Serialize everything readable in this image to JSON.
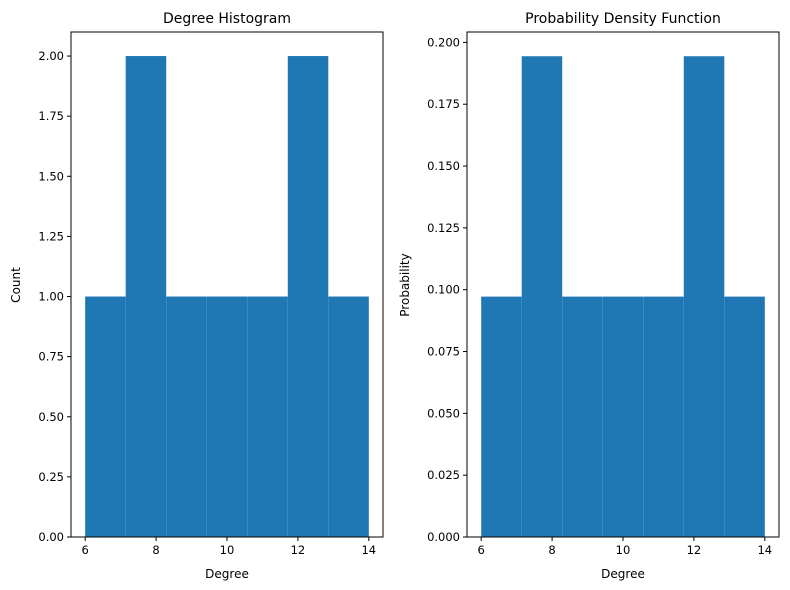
{
  "colors": {
    "bar": "#1f77b4",
    "axis": "#000000",
    "background": "#ffffff"
  },
  "chart_data": [
    {
      "type": "bar",
      "subtype": "histogram",
      "title": "Degree Histogram",
      "xlabel": "Degree",
      "ylabel": "Count",
      "bin_edges": [
        6,
        7.142857,
        8.285714,
        9.428571,
        10.571429,
        11.714286,
        12.857143,
        14
      ],
      "values": [
        1,
        2,
        1,
        1,
        1,
        2,
        1
      ],
      "xlim": [
        5.6,
        14.4
      ],
      "ylim": [
        0,
        2.1
      ],
      "xticks": [
        6,
        8,
        10,
        12,
        14
      ],
      "xtick_labels": [
        "6",
        "8",
        "10",
        "12",
        "14"
      ],
      "yticks": [
        0,
        0.25,
        0.5,
        0.75,
        1.0,
        1.25,
        1.5,
        1.75,
        2.0
      ],
      "ytick_labels": [
        "0.00",
        "0.25",
        "0.50",
        "0.75",
        "1.00",
        "1.25",
        "1.50",
        "1.75",
        "2.00"
      ],
      "grid": false,
      "legend": "none"
    },
    {
      "type": "bar",
      "subtype": "histogram",
      "title": "Probability Density Function",
      "xlabel": "Degree",
      "ylabel": "Probability",
      "bin_edges": [
        6,
        7.142857,
        8.285714,
        9.428571,
        10.571429,
        11.714286,
        12.857143,
        14
      ],
      "values": [
        0.0972,
        0.1944,
        0.0972,
        0.0972,
        0.0972,
        0.1944,
        0.0972
      ],
      "xlim": [
        5.6,
        14.4
      ],
      "ylim": [
        0,
        0.2042
      ],
      "xticks": [
        6,
        8,
        10,
        12,
        14
      ],
      "xtick_labels": [
        "6",
        "8",
        "10",
        "12",
        "14"
      ],
      "yticks": [
        0,
        0.025,
        0.05,
        0.075,
        0.1,
        0.125,
        0.15,
        0.175,
        0.2
      ],
      "ytick_labels": [
        "0.000",
        "0.025",
        "0.050",
        "0.075",
        "0.100",
        "0.125",
        "0.150",
        "0.175",
        "0.200"
      ],
      "grid": false,
      "legend": "none"
    }
  ]
}
